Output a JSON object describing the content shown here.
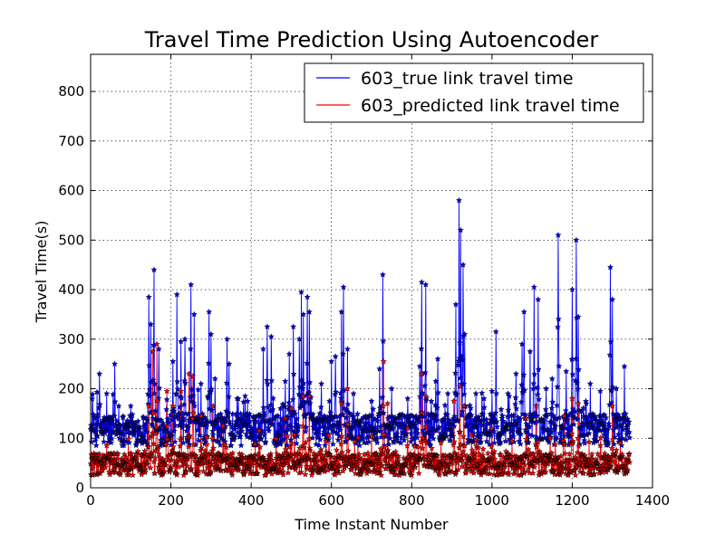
{
  "chart_data": {
    "type": "line",
    "title": "Travel Time Prediction Using Autoencoder",
    "xlabel": "Time Instant Number",
    "ylabel": "Travel Time(s)",
    "xlim": [
      0,
      1400
    ],
    "ylim": [
      0,
      875
    ],
    "xticks": [
      0,
      200,
      400,
      600,
      800,
      1000,
      1200,
      1400
    ],
    "yticks": [
      0,
      100,
      200,
      300,
      400,
      500,
      600,
      700,
      800
    ],
    "grid": true,
    "legend_position": "top-right",
    "marker": "star",
    "n_points": 1344,
    "series": [
      {
        "name": "603_true link travel time",
        "color": "#0000ff",
        "baseline": [
          85,
          150
        ],
        "peaks": [
          [
            22,
            230
          ],
          [
            40,
            190
          ],
          [
            60,
            250
          ],
          [
            70,
            165
          ],
          [
            100,
            165
          ],
          [
            145,
            385
          ],
          [
            150,
            330
          ],
          [
            158,
            440
          ],
          [
            170,
            280
          ],
          [
            205,
            255
          ],
          [
            215,
            390
          ],
          [
            225,
            295
          ],
          [
            235,
            300
          ],
          [
            250,
            410
          ],
          [
            258,
            350
          ],
          [
            275,
            210
          ],
          [
            295,
            355
          ],
          [
            300,
            310
          ],
          [
            310,
            220
          ],
          [
            340,
            300
          ],
          [
            345,
            250
          ],
          [
            365,
            180
          ],
          [
            385,
            185
          ],
          [
            430,
            280
          ],
          [
            440,
            325
          ],
          [
            450,
            305
          ],
          [
            485,
            215
          ],
          [
            495,
            270
          ],
          [
            505,
            325
          ],
          [
            520,
            300
          ],
          [
            525,
            395
          ],
          [
            530,
            350
          ],
          [
            540,
            385
          ],
          [
            545,
            355
          ],
          [
            575,
            210
          ],
          [
            600,
            255
          ],
          [
            610,
            265
          ],
          [
            625,
            355
          ],
          [
            630,
            405
          ],
          [
            640,
            280
          ],
          [
            655,
            190
          ],
          [
            700,
            175
          ],
          [
            720,
            240
          ],
          [
            728,
            430
          ],
          [
            750,
            200
          ],
          [
            790,
            180
          ],
          [
            820,
            245
          ],
          [
            825,
            415
          ],
          [
            835,
            410
          ],
          [
            860,
            215
          ],
          [
            865,
            260
          ],
          [
            890,
            190
          ],
          [
            910,
            370
          ],
          [
            918,
            580
          ],
          [
            922,
            520
          ],
          [
            928,
            450
          ],
          [
            932,
            310
          ],
          [
            960,
            190
          ],
          [
            980,
            180
          ],
          [
            1000,
            195
          ],
          [
            1010,
            315
          ],
          [
            1040,
            190
          ],
          [
            1060,
            230
          ],
          [
            1075,
            290
          ],
          [
            1080,
            355
          ],
          [
            1095,
            275
          ],
          [
            1105,
            405
          ],
          [
            1115,
            380
          ],
          [
            1135,
            200
          ],
          [
            1150,
            220
          ],
          [
            1165,
            510
          ],
          [
            1185,
            235
          ],
          [
            1200,
            400
          ],
          [
            1210,
            500
          ],
          [
            1215,
            345
          ],
          [
            1245,
            210
          ],
          [
            1270,
            195
          ],
          [
            1295,
            445
          ],
          [
            1300,
            380
          ],
          [
            1310,
            200
          ],
          [
            1330,
            245
          ]
        ]
      },
      {
        "name": "603_predicted link travel time",
        "color": "#ff0000",
        "baseline": [
          25,
          70
        ],
        "peaks": [
          [
            40,
            85
          ],
          [
            145,
            165
          ],
          [
            155,
            275
          ],
          [
            165,
            290
          ],
          [
            190,
            195
          ],
          [
            205,
            165
          ],
          [
            225,
            195
          ],
          [
            245,
            230
          ],
          [
            255,
            225
          ],
          [
            275,
            145
          ],
          [
            305,
            165
          ],
          [
            330,
            125
          ],
          [
            420,
            115
          ],
          [
            485,
            140
          ],
          [
            500,
            160
          ],
          [
            530,
            185
          ],
          [
            545,
            185
          ],
          [
            625,
            170
          ],
          [
            640,
            200
          ],
          [
            700,
            105
          ],
          [
            730,
            255
          ],
          [
            740,
            170
          ],
          [
            790,
            120
          ],
          [
            825,
            230
          ],
          [
            835,
            185
          ],
          [
            905,
            175
          ],
          [
            920,
            205
          ],
          [
            930,
            165
          ],
          [
            1000,
            120
          ],
          [
            1085,
            140
          ],
          [
            1110,
            165
          ],
          [
            1145,
            100
          ],
          [
            1180,
            145
          ],
          [
            1200,
            180
          ],
          [
            1215,
            170
          ],
          [
            1300,
            165
          ],
          [
            1320,
            90
          ]
        ]
      }
    ]
  }
}
